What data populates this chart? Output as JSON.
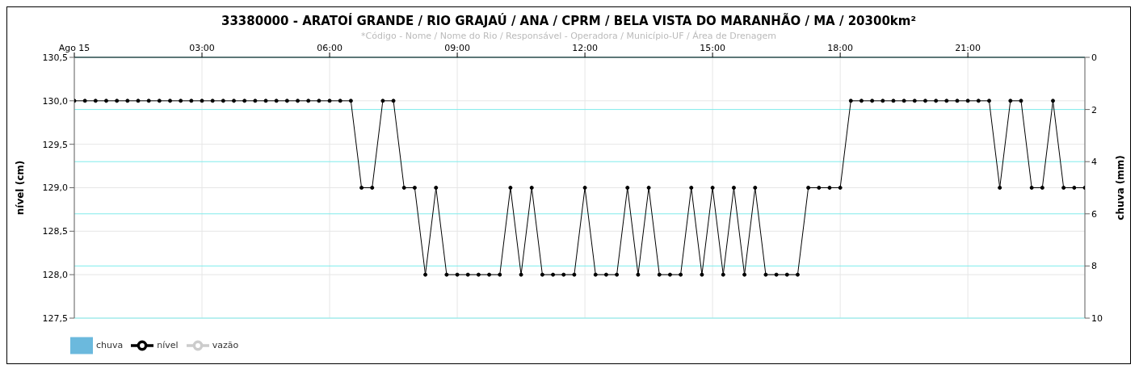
{
  "chart_data": {
    "type": "line",
    "title": "33380000 - ARATOÍ GRANDE / RIO GRAJAÚ / ANA / CPRM / BELA VISTA DO MARANHÃO / MA / 20300km²",
    "subtitle": "*Código - Nome / Nome do Rio / Responsável - Operadora / Município-UF / Área de Drenagem",
    "ylabel": "nível (cm)",
    "y2label": "chuva (mm)",
    "x": [
      0,
      0.25,
      0.5,
      0.75,
      1,
      1.25,
      1.5,
      1.75,
      2,
      2.25,
      2.5,
      2.75,
      3,
      3.25,
      3.5,
      3.75,
      4,
      4.25,
      4.5,
      4.75,
      5,
      5.25,
      5.5,
      5.75,
      6,
      6.25,
      6.5,
      6.75,
      7,
      7.25,
      7.5,
      7.75,
      8,
      8.25,
      8.5,
      8.75,
      9,
      9.25,
      9.5,
      9.75,
      10,
      10.25,
      10.5,
      10.75,
      11,
      11.25,
      11.5,
      11.75,
      12,
      12.25,
      12.5,
      12.75,
      13,
      13.25,
      13.5,
      13.75,
      14,
      14.25,
      14.5,
      14.75,
      15,
      15.25,
      15.5,
      15.75,
      16,
      16.25,
      16.5,
      16.75,
      17,
      17.25,
      17.5,
      17.75,
      18,
      18.25,
      18.5,
      18.75,
      19,
      19.25,
      19.5,
      19.75,
      20,
      20.25,
      20.5,
      20.75,
      21,
      21.25,
      21.5,
      21.75,
      22,
      22.25,
      22.5,
      22.75,
      23,
      23.25,
      23.5,
      23.75
    ],
    "series": [
      {
        "name": "chuva",
        "type": "bar",
        "color": "#6bb9dd",
        "values": [
          null,
          null,
          null,
          null,
          null,
          null,
          null,
          null,
          null,
          null,
          null,
          null,
          null,
          null,
          null,
          null,
          null,
          null,
          null,
          null,
          null,
          null,
          null,
          null,
          null,
          null,
          null,
          null,
          null,
          null,
          null,
          null,
          null,
          null,
          null,
          null,
          null,
          null,
          null,
          null,
          null,
          null,
          null,
          null,
          null,
          null,
          null,
          null,
          null,
          null,
          null,
          null,
          null,
          null,
          null,
          null,
          null,
          null,
          null,
          null,
          null,
          null,
          null,
          null,
          null,
          null,
          null,
          null,
          null,
          null,
          null,
          null,
          null,
          null,
          null,
          null,
          null,
          null,
          null,
          null,
          null,
          null,
          null,
          null,
          null,
          null,
          null,
          null,
          null,
          null,
          null,
          null,
          null,
          null,
          null,
          null
        ]
      },
      {
        "name": "nível",
        "color": "#000000",
        "marker": "circle",
        "values": [
          130,
          130,
          130,
          130,
          130,
          130,
          130,
          130,
          130,
          130,
          130,
          130,
          130,
          130,
          130,
          130,
          130,
          130,
          130,
          130,
          130,
          130,
          130,
          130,
          130,
          130,
          130,
          129,
          129,
          130,
          130,
          129,
          129,
          128,
          129,
          128,
          128,
          128,
          128,
          128,
          128,
          129,
          128,
          129,
          128,
          128,
          128,
          128,
          129,
          128,
          128,
          128,
          129,
          128,
          129,
          128,
          128,
          128,
          129,
          128,
          129,
          128,
          129,
          128,
          129,
          128,
          128,
          128,
          128,
          129,
          129,
          129,
          129,
          130,
          130,
          130,
          130,
          130,
          130,
          130,
          130,
          130,
          130,
          130,
          130,
          130,
          130,
          129,
          130,
          130,
          129,
          129,
          130,
          129,
          129,
          129
        ]
      },
      {
        "name": "vazão",
        "color": "#cccccc",
        "marker": "triangle",
        "values": [
          null,
          null,
          null,
          null,
          null,
          null,
          null,
          null,
          null,
          null,
          null,
          null,
          null,
          null,
          null,
          null,
          null,
          null,
          null,
          null,
          null,
          null,
          null,
          null,
          null,
          null,
          null,
          null,
          null,
          null,
          null,
          null,
          null,
          null,
          null,
          null,
          null,
          null,
          null,
          null,
          null,
          null,
          null,
          null,
          null,
          null,
          null,
          null,
          null,
          null,
          null,
          null,
          null,
          null,
          null,
          null,
          null,
          null,
          null,
          null,
          null,
          null,
          null,
          null,
          null,
          null,
          null,
          null,
          null,
          null,
          null,
          null,
          null,
          null,
          null,
          null,
          null,
          null,
          null,
          null,
          null,
          null,
          null,
          null,
          null,
          null,
          null,
          null,
          null,
          null,
          null,
          null,
          null,
          null,
          null,
          null
        ]
      }
    ],
    "xlim": [
      0,
      23.75
    ],
    "xticks": [
      {
        "value": 0,
        "label": "Ago 15"
      },
      {
        "value": 3,
        "label": "03:00"
      },
      {
        "value": 6,
        "label": "06:00"
      },
      {
        "value": 9,
        "label": "09:00"
      },
      {
        "value": 12,
        "label": "12:00"
      },
      {
        "value": 15,
        "label": "15:00"
      },
      {
        "value": 18,
        "label": "18:00"
      },
      {
        "value": 21,
        "label": "21:00"
      }
    ],
    "ylim": [
      127.5,
      130.5
    ],
    "yticks": [
      {
        "value": 127.5,
        "label": "127,5"
      },
      {
        "value": 128,
        "label": "128,0"
      },
      {
        "value": 128.5,
        "label": "128,5"
      },
      {
        "value": 129,
        "label": "129,0"
      },
      {
        "value": 129.5,
        "label": "129,5"
      },
      {
        "value": 130,
        "label": "130,0"
      },
      {
        "value": 130.5,
        "label": "130,5"
      }
    ],
    "y2lim": [
      10,
      0
    ],
    "y2ticks": [
      0,
      2,
      4,
      6,
      8,
      10
    ],
    "grid": true,
    "legend": "bottom left",
    "line_style": "solid"
  }
}
